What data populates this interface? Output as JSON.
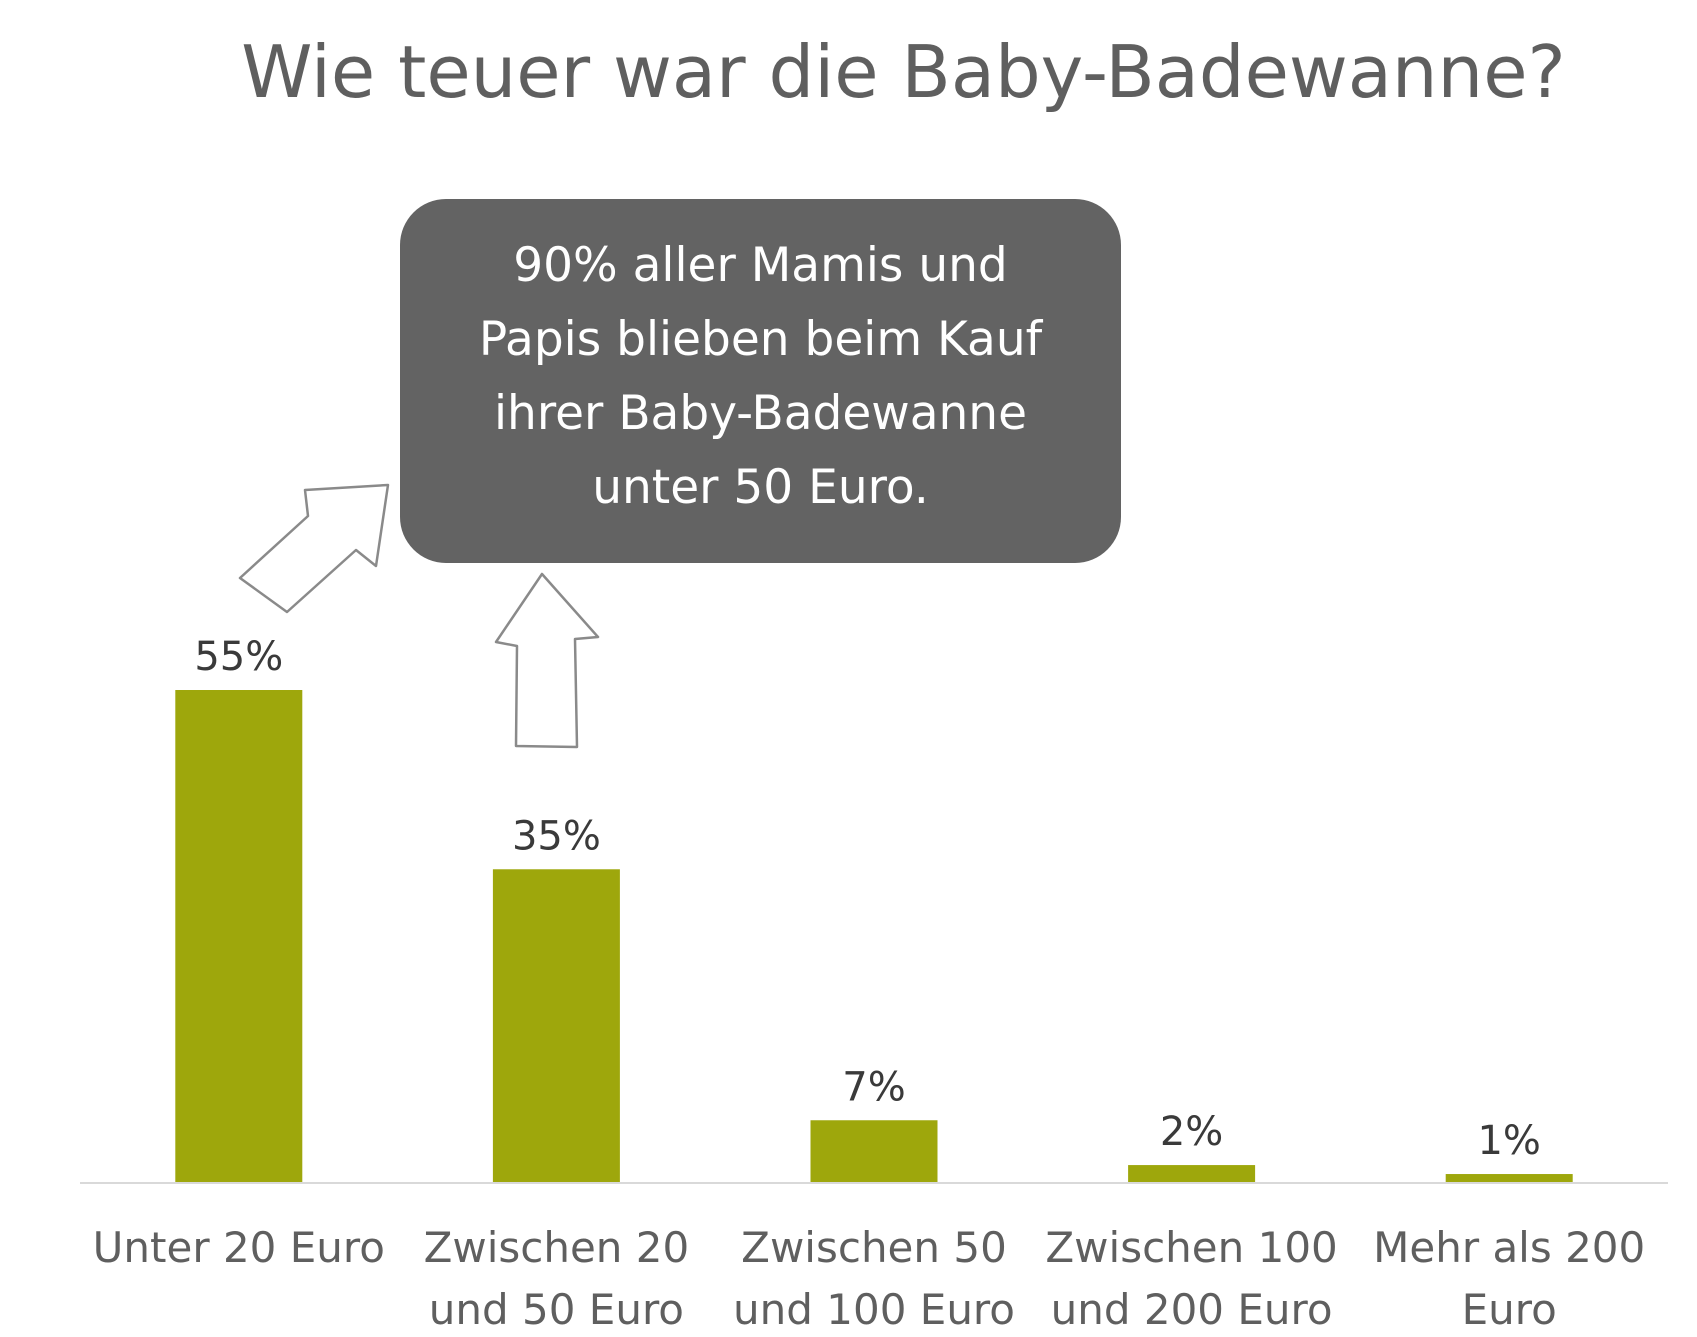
{
  "colors": {
    "bar": "#9ea70c",
    "axis": "#d9d9d9",
    "callout_bg": "#636363",
    "title": "#5f5f5f",
    "arrow_stroke": "#8a8a8a"
  },
  "callout": {
    "lines": [
      "90% aller Mamis und",
      "Papis blieben beim Kauf",
      "ihrer Baby-Badewanne",
      "unter 50 Euro."
    ]
  },
  "annotation_icons": [
    "arrow-up-right-icon",
    "arrow-up-icon"
  ],
  "chart_data": {
    "type": "bar",
    "title": "Wie teuer war die Baby-Badewanne?",
    "xlabel": "",
    "ylabel": "",
    "categories": [
      [
        "Unter 20 Euro"
      ],
      [
        "Zwischen 20",
        "und 50 Euro"
      ],
      [
        "Zwischen 50",
        "und 100 Euro"
      ],
      [
        "Zwischen 100",
        "und 200 Euro"
      ],
      [
        "Mehr als 200",
        "Euro"
      ]
    ],
    "values": [
      55,
      35,
      7,
      2,
      1
    ],
    "data_labels": [
      "55%",
      "35%",
      "7%",
      "2%",
      "1%"
    ],
    "ylim": [
      0,
      55
    ],
    "grid": false,
    "legend": "none"
  }
}
